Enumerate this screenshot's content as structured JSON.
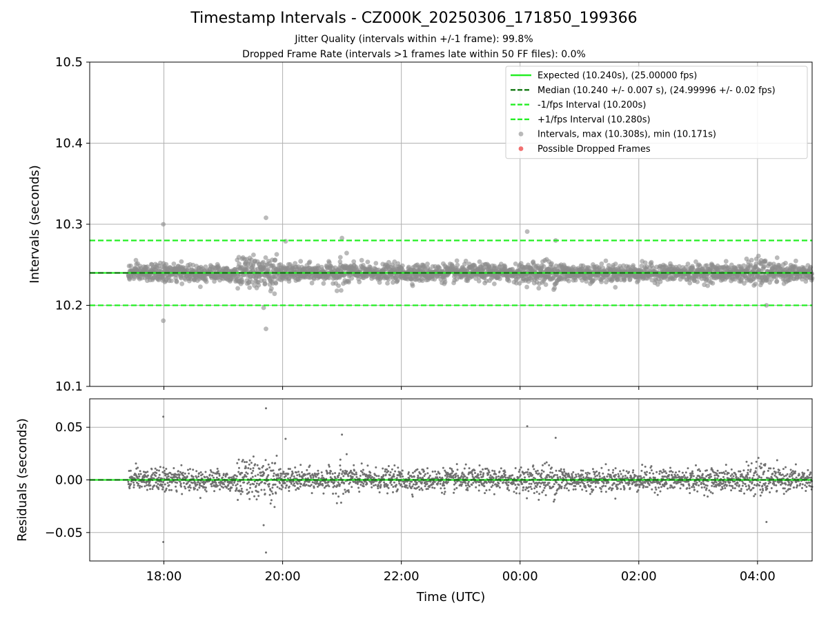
{
  "figure": {
    "title": "Timestamp Intervals - CZ000K_20250306_171850_199366",
    "subtitle_line1": "Jitter Quality (intervals within +/-1 frame): 99.8%",
    "subtitle_line2": "Dropped Frame Rate (intervals >1 frames late within 50 FF files): 0.0%"
  },
  "chart_data": [
    {
      "type": "scatter",
      "panel": "intervals",
      "ylabel": "Intervals (seconds)",
      "ylim": [
        10.1,
        10.5
      ],
      "yticks": [
        "10.1",
        "10.2",
        "10.3",
        "10.4",
        "10.5"
      ],
      "xlim_hours": [
        16.75,
        28.92
      ],
      "xticks": [
        {
          "hour": 18,
          "label": "18:00"
        },
        {
          "hour": 20,
          "label": "20:00"
        },
        {
          "hour": 22,
          "label": "22:00"
        },
        {
          "hour": 24,
          "label": "00:00"
        },
        {
          "hour": 26,
          "label": "02:00"
        },
        {
          "hour": 28,
          "label": "04:00"
        }
      ],
      "grid": true,
      "legend_position": "top-right",
      "lines": [
        {
          "name": "Expected (10.240s), (25.00000 fps)",
          "y": 10.24,
          "style": "solid",
          "color": "#22ee22"
        },
        {
          "name": "Median (10.240 +/- 0.007 s), (24.99996 +/- 0.02 fps)",
          "y": 10.24,
          "style": "dashed",
          "color": "#117711"
        },
        {
          "name": "-1/fps Interval (10.200s)",
          "y": 10.2,
          "style": "dashed",
          "color": "#22ee22"
        },
        {
          "name": "+1/fps Interval (10.280s)",
          "y": 10.28,
          "style": "dashed",
          "color": "#22ee22"
        }
      ],
      "series": [
        {
          "name": "Intervals, max (10.308s), min (10.171s)",
          "color": "#8c8c8c",
          "x_range_hours": [
            17.4,
            28.92
          ],
          "median": 10.24,
          "std": 0.007,
          "max": 10.308,
          "min": 10.171,
          "notable_points": [
            {
              "hour": 17.99,
              "y": 10.3
            },
            {
              "hour": 17.99,
              "y": 10.181
            },
            {
              "hour": 19.72,
              "y": 10.308
            },
            {
              "hour": 19.72,
              "y": 10.171
            },
            {
              "hour": 19.68,
              "y": 10.197
            },
            {
              "hour": 24.12,
              "y": 10.291
            },
            {
              "hour": 20.05,
              "y": 10.279
            },
            {
              "hour": 21.0,
              "y": 10.283
            },
            {
              "hour": 24.6,
              "y": 10.28
            },
            {
              "hour": 28.15,
              "y": 10.2
            }
          ]
        },
        {
          "name": "Possible Dropped Frames",
          "color": "#f06060",
          "points": []
        }
      ]
    },
    {
      "type": "scatter",
      "panel": "residuals",
      "xlabel": "Time (UTC)",
      "ylabel": "Residuals (seconds)",
      "ylim": [
        -0.077,
        0.077
      ],
      "yticks": [
        {
          "value": -0.05,
          "label": "−0.05"
        },
        {
          "value": 0.0,
          "label": "0.00"
        },
        {
          "value": 0.05,
          "label": "0.05"
        }
      ],
      "grid": true,
      "lines": [
        {
          "name": "zero",
          "y": 0.0,
          "color": "#22ee22"
        },
        {
          "name": "median",
          "y": 0.0,
          "color": "#117711",
          "style": "dashed"
        }
      ],
      "series": [
        {
          "name": "residuals",
          "color": "#707070",
          "std": 0.007,
          "max": 0.068,
          "min": -0.069
        }
      ]
    }
  ]
}
